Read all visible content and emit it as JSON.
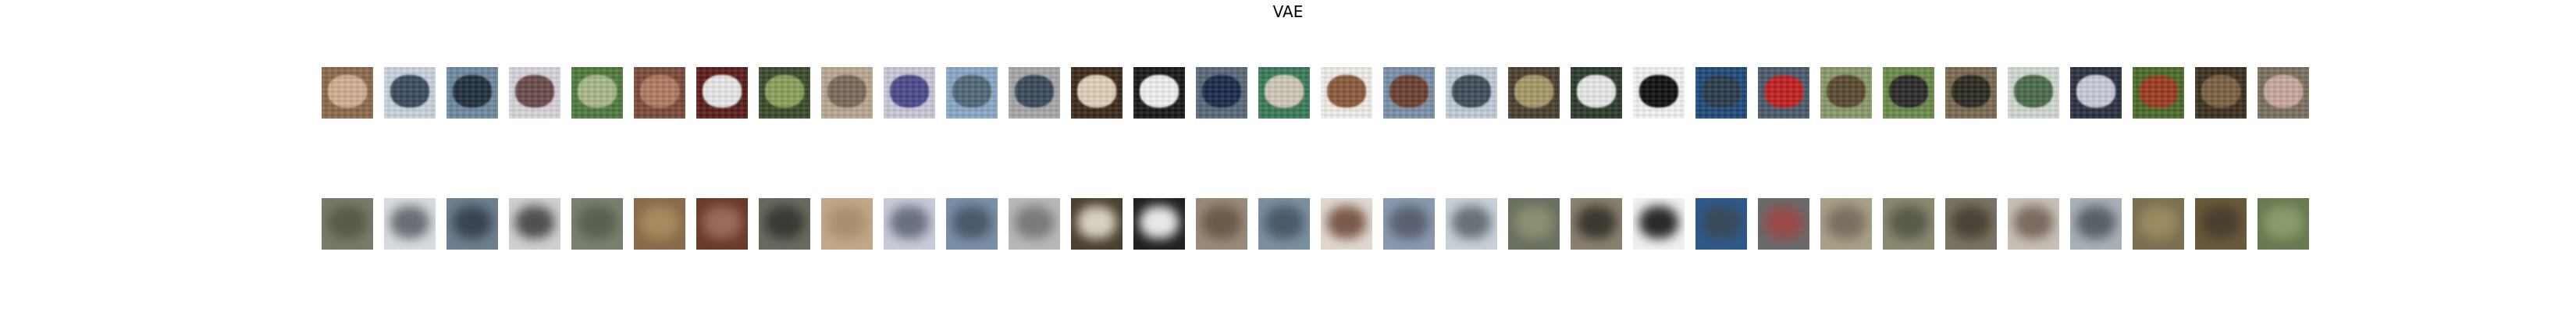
{
  "figure": {
    "title": "VAE"
  },
  "rows": [
    {
      "kind": "original",
      "thumbnails": [
        {
          "bg": "#8a6a4a",
          "fg": "#d0b090"
        },
        {
          "bg": "#c9d3dc",
          "fg": "#3a4a5e"
        },
        {
          "bg": "#6f8aa0",
          "fg": "#20303c"
        },
        {
          "bg": "#d8d4dc",
          "fg": "#6a4a4a"
        },
        {
          "bg": "#4f7a3e",
          "fg": "#a8b88a"
        },
        {
          "bg": "#7a4a3a",
          "fg": "#b07a60"
        },
        {
          "bg": "#5a1c18",
          "fg": "#e8e8e8"
        },
        {
          "bg": "#3a4a2a",
          "fg": "#8aa05a"
        },
        {
          "bg": "#b8a890",
          "fg": "#7a6a58"
        },
        {
          "bg": "#c8c8d8",
          "fg": "#4a4a8a"
        },
        {
          "bg": "#8aa8c8",
          "fg": "#506878"
        },
        {
          "bg": "#a8a8a8",
          "fg": "#3a4a5a"
        },
        {
          "bg": "#3a2a1a",
          "fg": "#e0d0b8"
        },
        {
          "bg": "#181818",
          "fg": "#f0f0f0"
        },
        {
          "bg": "#5a6878",
          "fg": "#1a2a4a"
        },
        {
          "bg": "#3a7a5a",
          "fg": "#d0c8b8"
        },
        {
          "bg": "#f0ece8",
          "fg": "#8a5a3a"
        },
        {
          "bg": "#7a90a8",
          "fg": "#6a4030"
        },
        {
          "bg": "#c0ccd8",
          "fg": "#404c58"
        },
        {
          "bg": "#4a4030",
          "fg": "#a89868"
        },
        {
          "bg": "#2a3a2a",
          "fg": "#e8e8e8"
        },
        {
          "bg": "#f0f4f0",
          "fg": "#101010"
        },
        {
          "bg": "#1e4a7a",
          "fg": "#2a3a4a"
        },
        {
          "bg": "#4a5a6a",
          "fg": "#c02020"
        },
        {
          "bg": "#8a9a6a",
          "fg": "#5a4a30"
        },
        {
          "bg": "#6a8a4a",
          "fg": "#2a2a2a"
        },
        {
          "bg": "#7a6a50",
          "fg": "#2a2a20"
        },
        {
          "bg": "#d0d8d0",
          "fg": "#4a6a4a"
        },
        {
          "bg": "#2a3040",
          "fg": "#c8ccd8"
        },
        {
          "bg": "#4a6a2a",
          "fg": "#9a3a20"
        },
        {
          "bg": "#3a3020",
          "fg": "#7a6040"
        },
        {
          "bg": "#7a7060",
          "fg": "#c8a8a0"
        }
      ]
    },
    {
      "kind": "reconstruction",
      "thumbnails": [
        {
          "bg": "#7a7a6a",
          "fg": "#5a5a4a"
        },
        {
          "bg": "#d8dce0",
          "fg": "#6a6e74"
        },
        {
          "bg": "#6e8090",
          "fg": "#3a4450"
        },
        {
          "bg": "#d0d0d0",
          "fg": "#505050"
        },
        {
          "bg": "#7a8070",
          "fg": "#5a6050"
        },
        {
          "bg": "#8a6a4a",
          "fg": "#a88a60"
        },
        {
          "bg": "#6a3a2a",
          "fg": "#9a6a5a"
        },
        {
          "bg": "#6a6a60",
          "fg": "#3a3a34"
        },
        {
          "bg": "#c0a888",
          "fg": "#a89070"
        },
        {
          "bg": "#c8ccd8",
          "fg": "#6a7080"
        },
        {
          "bg": "#7a90a8",
          "fg": "#4a5a6a"
        },
        {
          "bg": "#b8b8b8",
          "fg": "#7a7a7a"
        },
        {
          "bg": "#4a4030",
          "fg": "#d8d0c0"
        },
        {
          "bg": "#202020",
          "fg": "#e8e8e8"
        },
        {
          "bg": "#9a8a7a",
          "fg": "#6a5a4a"
        },
        {
          "bg": "#7a90a0",
          "fg": "#4a5a68"
        },
        {
          "bg": "#e0d8d0",
          "fg": "#7a5a4a"
        },
        {
          "bg": "#8a9ab0",
          "fg": "#5a6070"
        },
        {
          "bg": "#c8d0d8",
          "fg": "#6a7078"
        },
        {
          "bg": "#6a7060",
          "fg": "#8a9070"
        },
        {
          "bg": "#8a8070",
          "fg": "#3a3830"
        },
        {
          "bg": "#f0f0f0",
          "fg": "#2a2a2a"
        },
        {
          "bg": "#2e5a8a",
          "fg": "#3a4a5a"
        },
        {
          "bg": "#6a6a6a",
          "fg": "#9a4a4a"
        },
        {
          "bg": "#a8a088",
          "fg": "#7a7060"
        },
        {
          "bg": "#8a8a70",
          "fg": "#5a5a4a"
        },
        {
          "bg": "#7a7464",
          "fg": "#4a4438"
        },
        {
          "bg": "#c8c0b8",
          "fg": "#7a6a60"
        },
        {
          "bg": "#a8b0b8",
          "fg": "#5a6068"
        },
        {
          "bg": "#7a7050",
          "fg": "#9a8a60"
        },
        {
          "bg": "#6a5a3a",
          "fg": "#4a4030"
        },
        {
          "bg": "#6a7a50",
          "fg": "#8a9a6a"
        }
      ]
    }
  ]
}
